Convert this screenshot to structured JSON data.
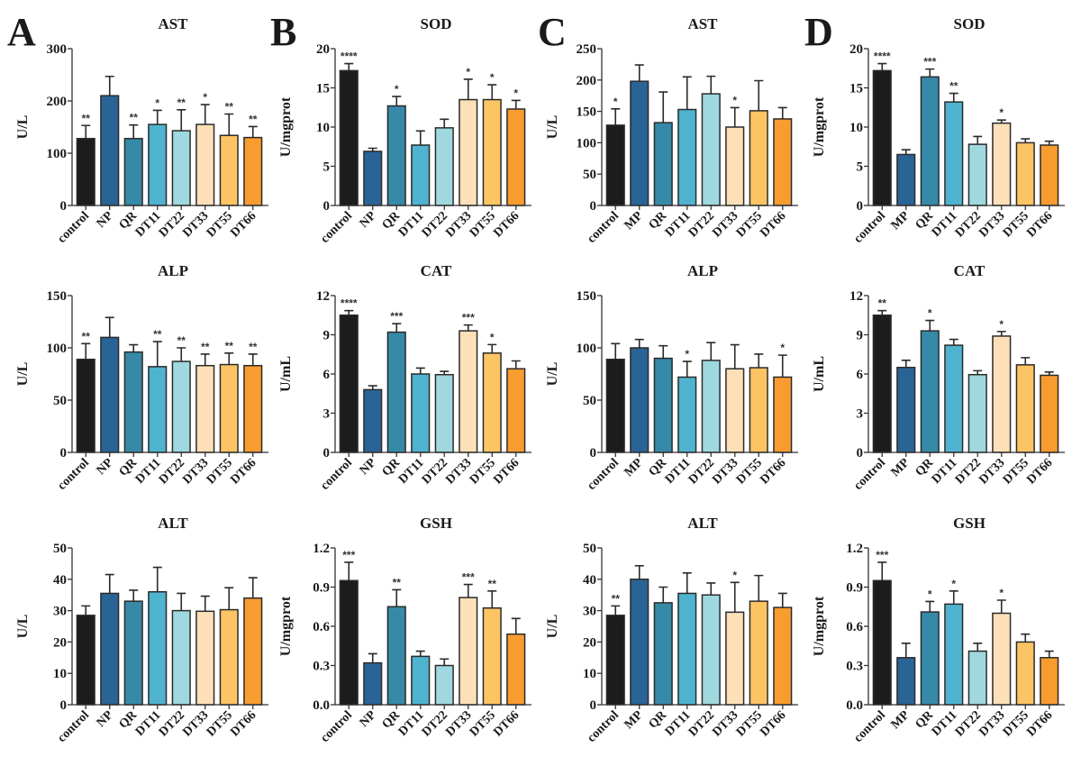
{
  "colors": [
    "#1c1c1c",
    "#2a6496",
    "#3789a8",
    "#4fb3cf",
    "#9fd8de",
    "#fde0b8",
    "#fdc464",
    "#f99c30"
  ],
  "chart_data": [
    {
      "panel": "A",
      "title": "AST",
      "type": "bar",
      "ylabel": "U/L",
      "ylim": [
        0,
        300
      ],
      "yticks": [
        "0",
        "100",
        "200",
        "300"
      ],
      "categories": [
        "control",
        "NP",
        "QR",
        "DT11",
        "DT22",
        "DT33",
        "DT55",
        "DT66"
      ],
      "values": [
        128,
        210,
        128,
        155,
        143,
        155,
        134,
        130
      ],
      "errors": [
        25,
        37,
        26,
        27,
        40,
        38,
        41,
        21
      ],
      "significance": [
        "**",
        "",
        "**",
        "*",
        "**",
        "*",
        "**",
        "**"
      ]
    },
    {
      "panel": "",
      "title": "ALP",
      "type": "bar",
      "ylabel": "U/L",
      "ylim": [
        0,
        150
      ],
      "yticks": [
        "0",
        "50",
        "100",
        "150"
      ],
      "categories": [
        "control",
        "NP",
        "QR",
        "DT11",
        "DT22",
        "DT33",
        "DT55",
        "DT66"
      ],
      "values": [
        89,
        110,
        96,
        82,
        87,
        83,
        84,
        83
      ],
      "errors": [
        15,
        19,
        7,
        24,
        13,
        11,
        11,
        11
      ],
      "significance": [
        "**",
        "",
        "",
        "**",
        "**",
        "**",
        "**",
        "**"
      ]
    },
    {
      "panel": "",
      "title": "ALT",
      "type": "bar",
      "ylabel": "U/L",
      "ylim": [
        0,
        50
      ],
      "yticks": [
        "0",
        "10",
        "20",
        "30",
        "40",
        "50"
      ],
      "categories": [
        "control",
        "NP",
        "QR",
        "DT11",
        "DT22",
        "DT33",
        "DT55",
        "DT66"
      ],
      "values": [
        28.5,
        35.5,
        33,
        36,
        30,
        29.8,
        30.3,
        34
      ],
      "errors": [
        3,
        6,
        3.5,
        7.8,
        5.5,
        4.8,
        7,
        6.5
      ],
      "significance": [
        "",
        "",
        "",
        "",
        "",
        "",
        "",
        ""
      ]
    },
    {
      "panel": "B",
      "title": "SOD",
      "type": "bar",
      "ylabel": "U/mgprot",
      "ylim": [
        0,
        20
      ],
      "yticks": [
        "0",
        "5",
        "10",
        "15",
        "20"
      ],
      "categories": [
        "control",
        "NP",
        "QR",
        "DT11",
        "DT22",
        "DT33",
        "DT55",
        "DT66"
      ],
      "values": [
        17.2,
        6.9,
        12.7,
        7.7,
        9.9,
        13.5,
        13.5,
        12.3
      ],
      "errors": [
        0.9,
        0.4,
        1.2,
        1.8,
        1.1,
        2.6,
        1.9,
        1.1
      ],
      "significance": [
        "****",
        "",
        "*",
        "",
        "",
        "*",
        "*",
        "*"
      ]
    },
    {
      "panel": "",
      "title": "CAT",
      "type": "bar",
      "ylabel": "U/mL",
      "ylim": [
        0,
        12
      ],
      "yticks": [
        "0",
        "3",
        "6",
        "9",
        "12"
      ],
      "categories": [
        "control",
        "NP",
        "QR",
        "DT11",
        "DT22",
        "DT33",
        "DT55",
        "DT66"
      ],
      "values": [
        10.5,
        4.8,
        9.2,
        6.0,
        5.95,
        9.3,
        7.6,
        6.4
      ],
      "errors": [
        0.35,
        0.3,
        0.65,
        0.45,
        0.25,
        0.45,
        0.65,
        0.6
      ],
      "significance": [
        "****",
        "",
        "***",
        "",
        "",
        "***",
        "*",
        ""
      ]
    },
    {
      "panel": "",
      "title": "GSH",
      "type": "bar",
      "ylabel": "U/mgprot",
      "ylim": [
        0,
        1.2
      ],
      "yticks": [
        "0.0",
        "0.3",
        "0.6",
        "0.9",
        "1.2"
      ],
      "categories": [
        "control",
        "NP",
        "QR",
        "DT11",
        "DT22",
        "DT33",
        "DT55",
        "DT66"
      ],
      "values": [
        0.95,
        0.32,
        0.75,
        0.37,
        0.3,
        0.82,
        0.74,
        0.54
      ],
      "errors": [
        0.14,
        0.07,
        0.13,
        0.04,
        0.05,
        0.1,
        0.13,
        0.12
      ],
      "significance": [
        "***",
        "",
        "**",
        "",
        "",
        "***",
        "**",
        ""
      ]
    },
    {
      "panel": "C",
      "title": "AST",
      "type": "bar",
      "ylabel": "U/L",
      "ylim": [
        0,
        250
      ],
      "yticks": [
        "0",
        "50",
        "100",
        "150",
        "200",
        "250"
      ],
      "categories": [
        "control",
        "MP",
        "QR",
        "DT11",
        "DT22",
        "DT33",
        "DT55",
        "DT66"
      ],
      "values": [
        128,
        198,
        132,
        153,
        178,
        125,
        151,
        138
      ],
      "errors": [
        26,
        26,
        49,
        52,
        28,
        31,
        48,
        18
      ],
      "significance": [
        "*",
        "",
        "",
        "",
        "",
        "*",
        "",
        ""
      ]
    },
    {
      "panel": "",
      "title": "ALP",
      "type": "bar",
      "ylabel": "U/L",
      "ylim": [
        0,
        150
      ],
      "yticks": [
        "0",
        "50",
        "100",
        "150"
      ],
      "categories": [
        "control",
        "MP",
        "QR",
        "DT11",
        "DT22",
        "DT33",
        "DT55",
        "DT66"
      ],
      "values": [
        89,
        100,
        90,
        72,
        88,
        80,
        81,
        72
      ],
      "errors": [
        15,
        8,
        12,
        15,
        17,
        23,
        13,
        21
      ],
      "significance": [
        "",
        "",
        "",
        "*",
        "",
        "",
        "",
        "*"
      ]
    },
    {
      "panel": "",
      "title": "ALT",
      "type": "bar",
      "ylabel": "U/L",
      "ylim": [
        0,
        50
      ],
      "yticks": [
        "0",
        "10",
        "20",
        "30",
        "40",
        "50"
      ],
      "categories": [
        "control",
        "MP",
        "QR",
        "DT11",
        "DT22",
        "DT33",
        "DT55",
        "DT66"
      ],
      "values": [
        28.5,
        40,
        32.5,
        35.5,
        35,
        29.5,
        33,
        31
      ],
      "errors": [
        3,
        4.3,
        5,
        6.5,
        3.8,
        9.5,
        8.2,
        4.5
      ],
      "significance": [
        "**",
        "",
        "",
        "",
        "",
        "*",
        "",
        ""
      ]
    },
    {
      "panel": "D",
      "title": "SOD",
      "type": "bar",
      "ylabel": "U/mgprot",
      "ylim": [
        0,
        20
      ],
      "yticks": [
        "0",
        "5",
        "10",
        "15",
        "20"
      ],
      "categories": [
        "control",
        "MP",
        "QR",
        "DT11",
        "DT22",
        "DT33",
        "DT55",
        "DT66"
      ],
      "values": [
        17.2,
        6.5,
        16.4,
        13.2,
        7.8,
        10.5,
        8.0,
        7.7
      ],
      "errors": [
        0.9,
        0.6,
        1.0,
        1.1,
        1.0,
        0.4,
        0.5,
        0.5
      ],
      "significance": [
        "****",
        "",
        "***",
        "**",
        "",
        "*",
        "",
        ""
      ]
    },
    {
      "panel": "",
      "title": "CAT",
      "type": "bar",
      "ylabel": "U/mL",
      "ylim": [
        0,
        12
      ],
      "yticks": [
        "0",
        "3",
        "6",
        "9",
        "12"
      ],
      "categories": [
        "control",
        "MP",
        "QR",
        "DT11",
        "DT22",
        "DT33",
        "DT55",
        "DT66"
      ],
      "values": [
        10.5,
        6.5,
        9.3,
        8.2,
        5.95,
        8.9,
        6.7,
        5.9
      ],
      "errors": [
        0.35,
        0.55,
        0.8,
        0.45,
        0.3,
        0.35,
        0.55,
        0.25
      ],
      "significance": [
        "**",
        "",
        "*",
        "",
        "",
        "*",
        "",
        ""
      ]
    },
    {
      "panel": "",
      "title": "GSH",
      "type": "bar",
      "ylabel": "U/mgprot",
      "ylim": [
        0,
        1.2
      ],
      "yticks": [
        "0.0",
        "0.3",
        "0.6",
        "0.9",
        "1.2"
      ],
      "categories": [
        "control",
        "MP",
        "QR",
        "DT11",
        "DT22",
        "DT33",
        "DT55",
        "DT66"
      ],
      "values": [
        0.95,
        0.36,
        0.71,
        0.77,
        0.41,
        0.7,
        0.48,
        0.36
      ],
      "errors": [
        0.14,
        0.11,
        0.08,
        0.1,
        0.06,
        0.1,
        0.06,
        0.05
      ],
      "significance": [
        "***",
        "",
        "*",
        "*",
        "",
        "*",
        "",
        ""
      ]
    }
  ]
}
